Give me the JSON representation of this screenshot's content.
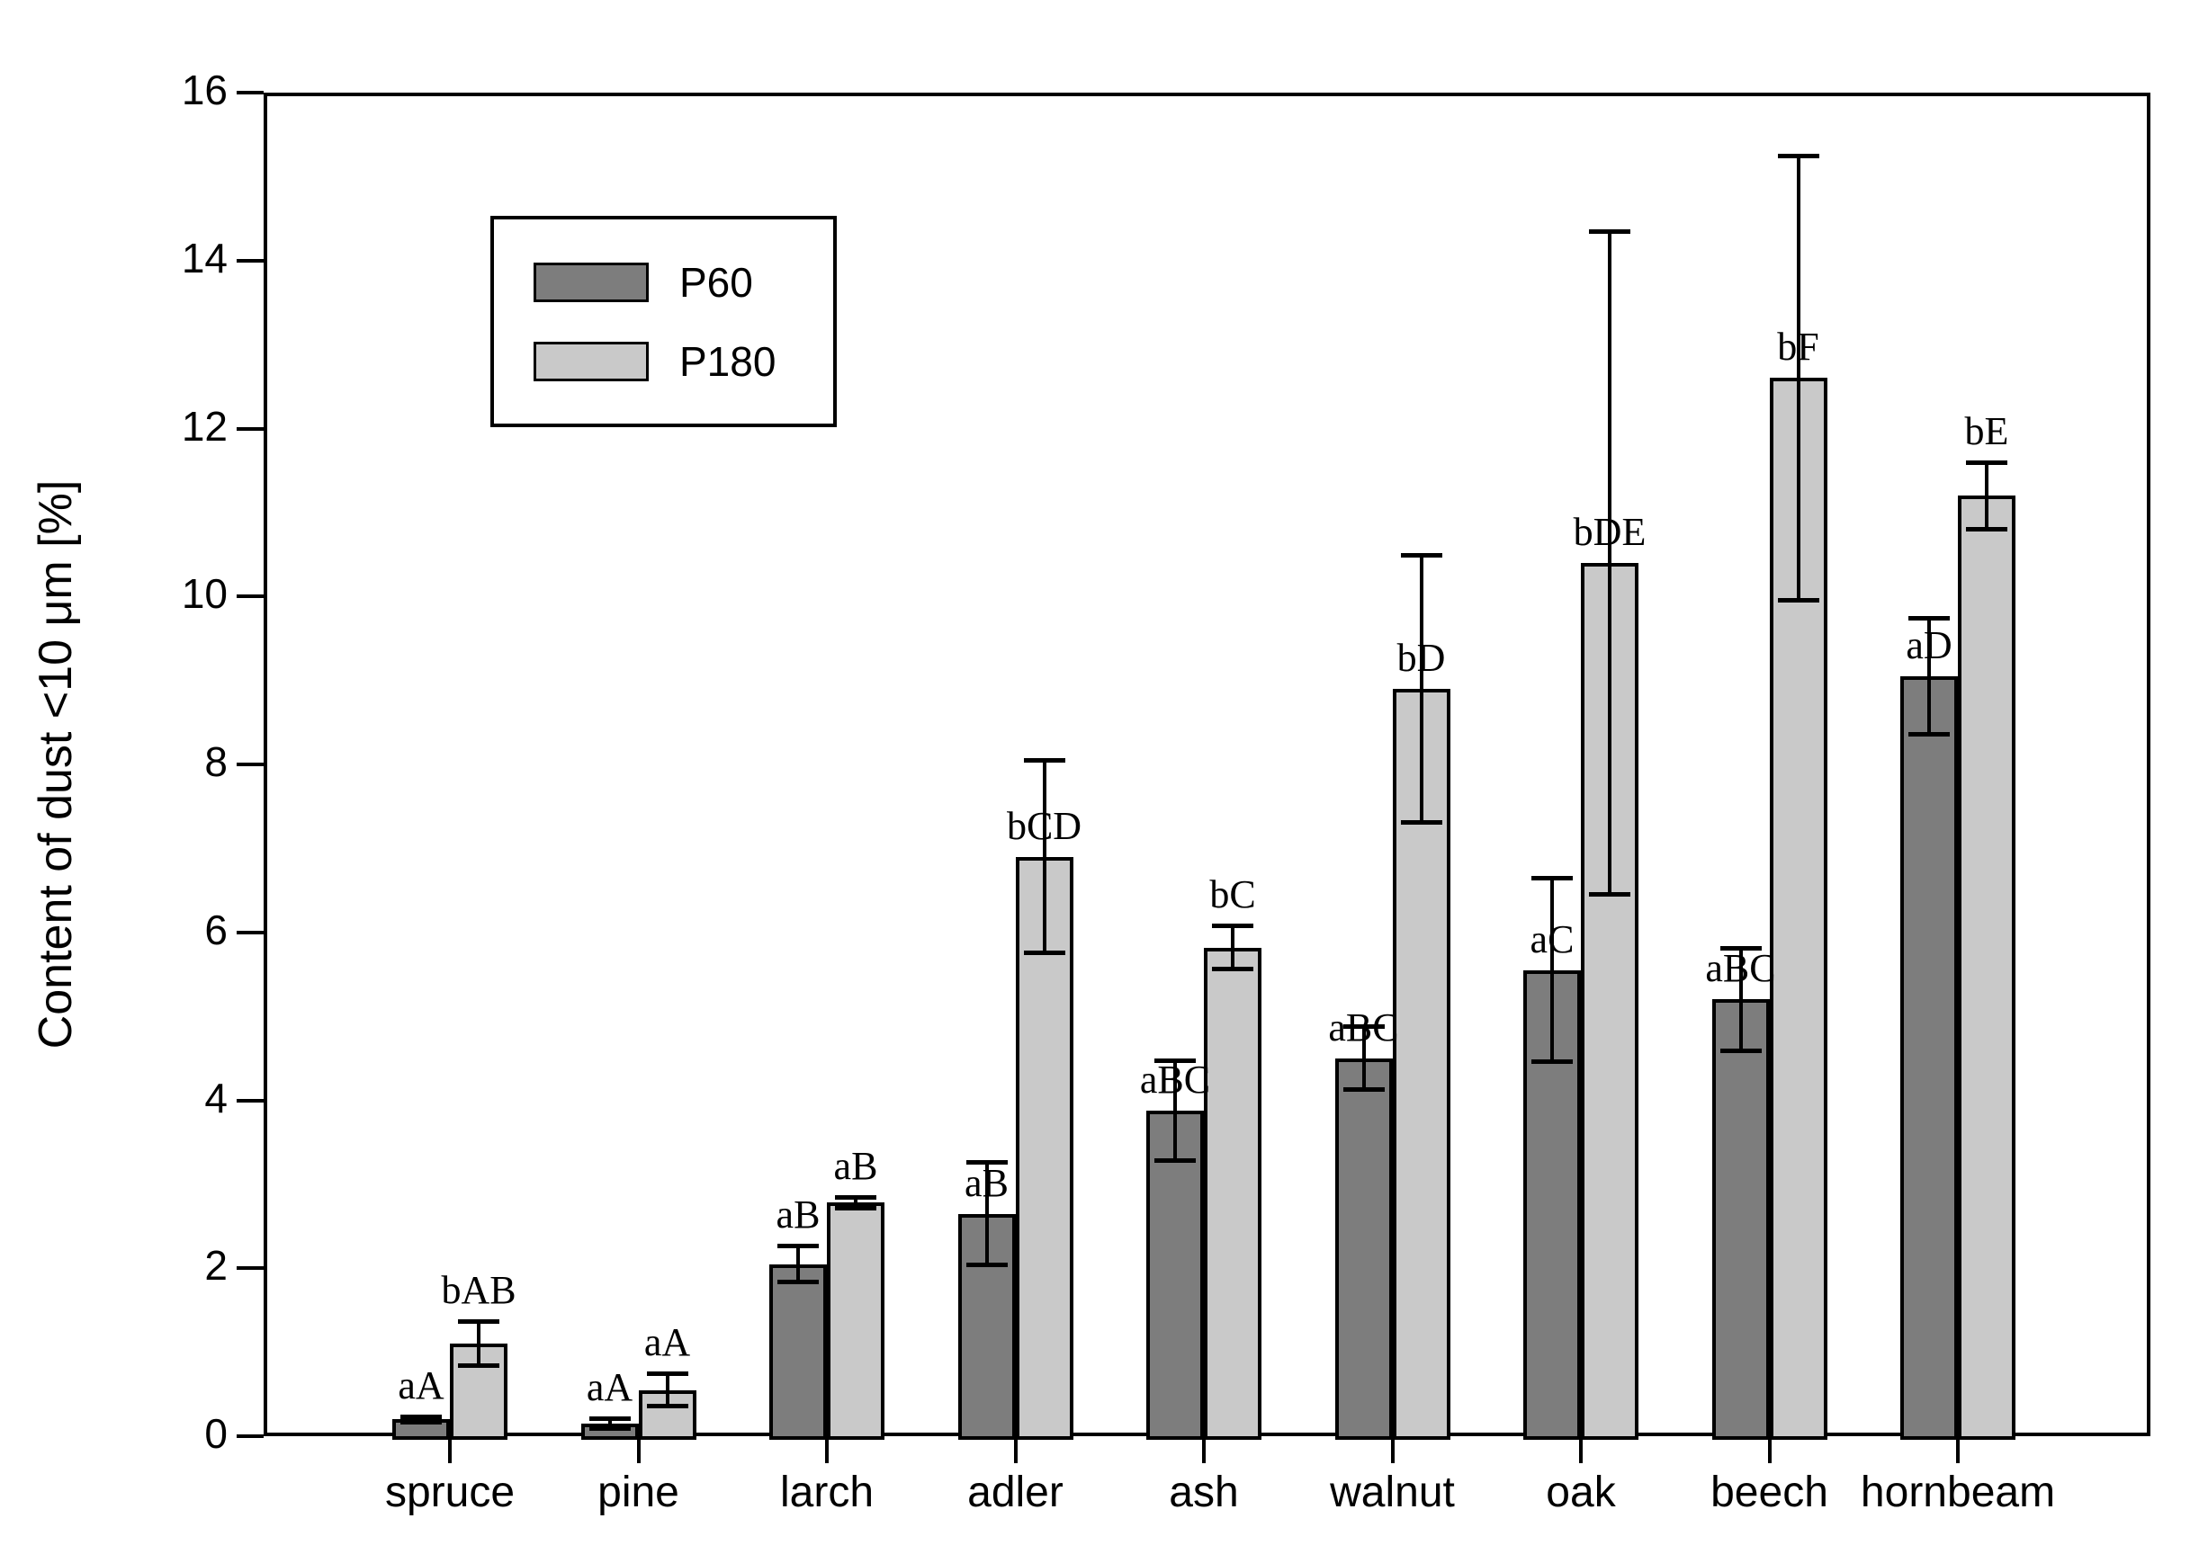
{
  "chart_data": {
    "type": "bar",
    "title": "",
    "xlabel": "",
    "ylabel": "Content of dust <10 μm [%]",
    "ylim": [
      0,
      16
    ],
    "ytick_step": 2,
    "grid": false,
    "legend_position": "upper-left-inside",
    "categories": [
      "spruce",
      "pine",
      "larch",
      "adler",
      "ash",
      "walnut",
      "oak",
      "beech",
      "hornbeam"
    ],
    "series": [
      {
        "name": "P60",
        "color": "#7d7d7d",
        "values": [
          0.2,
          0.15,
          2.05,
          2.65,
          3.88,
          4.5,
          5.55,
          5.2,
          9.05
        ],
        "errors": [
          0.04,
          0.06,
          0.22,
          0.62,
          0.6,
          0.38,
          1.1,
          0.62,
          0.7
        ],
        "sig_labels": [
          "aA",
          "aA",
          "aB",
          "aB",
          "aBC",
          "aBC",
          "aC",
          "aBC",
          "aD"
        ],
        "sig_label_anchor": [
          "err",
          "err",
          "err",
          "bar",
          "bar",
          "bar",
          "bar",
          "bar",
          "bar"
        ]
      },
      {
        "name": "P180",
        "color": "#c9c9c9",
        "values": [
          1.1,
          0.55,
          2.78,
          6.9,
          5.82,
          8.9,
          10.4,
          12.6,
          11.2
        ],
        "errors": [
          0.27,
          0.2,
          0.07,
          1.15,
          0.26,
          1.6,
          3.95,
          2.65,
          0.4
        ],
        "sig_labels": [
          "bAB",
          "aA",
          "aB",
          "bCD",
          "bC",
          "bD",
          "bDE",
          "bF",
          "bE"
        ],
        "sig_label_anchor": [
          "err",
          "err",
          "err",
          "bar",
          "err",
          "bar",
          "bar",
          "bar",
          "err"
        ]
      }
    ]
  }
}
